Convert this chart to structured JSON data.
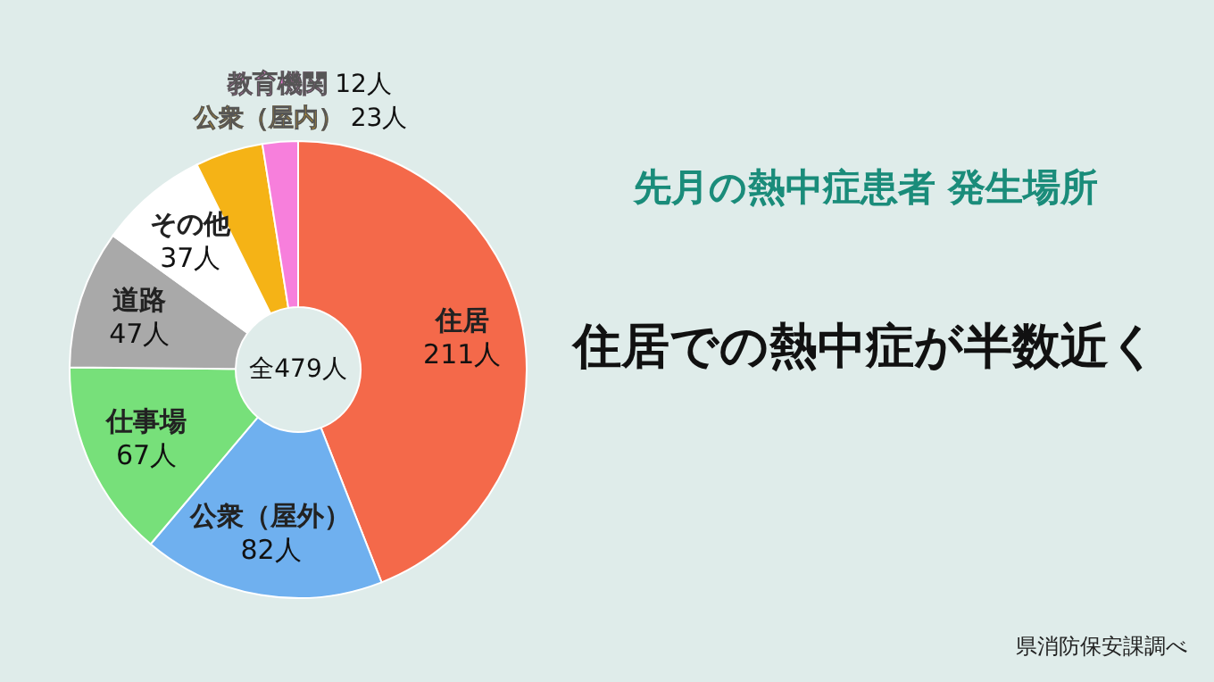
{
  "chart_data": {
    "type": "donut",
    "title": "先月の熱中症患者 発生場所",
    "subtitle": "住居での熱中症が半数近く",
    "categories": [
      "住居",
      "公衆（屋外）",
      "仕事場",
      "道路",
      "その他",
      "公衆（屋内）",
      "教育機関"
    ],
    "values": [
      211,
      82,
      67,
      47,
      37,
      23,
      12
    ],
    "colors": [
      "#f4694a",
      "#6fb0ef",
      "#77e07a",
      "#a9a9a9",
      "#ffffff",
      "#f5b316",
      "#f77fdc"
    ],
    "value_labels": [
      "211人",
      "82人",
      "67人",
      "47人",
      "37人",
      "23人",
      "12人"
    ],
    "annotations": [
      "全479人",
      "県消防保安課調べ"
    ]
  }
}
